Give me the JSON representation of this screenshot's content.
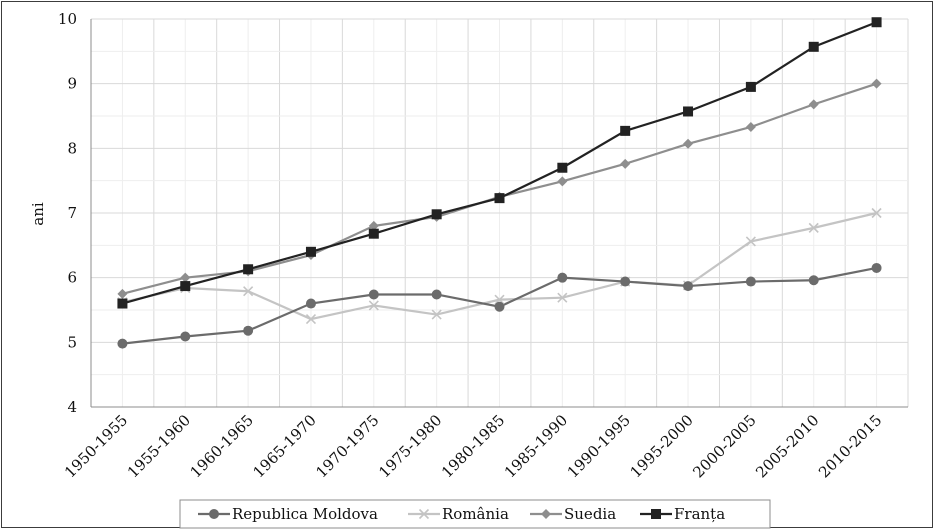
{
  "chart_data": {
    "type": "line",
    "title": "",
    "xlabel": "",
    "ylabel": "ani",
    "ylim": [
      4,
      10
    ],
    "yticks": [
      4,
      5,
      6,
      7,
      8,
      9,
      10
    ],
    "grid": true,
    "legend_position": "bottom",
    "categories": [
      "1950-1955",
      "1955-1960",
      "1960-1965",
      "1965-1970",
      "1970-1975",
      "1975-1980",
      "1980-1985",
      "1985-1990",
      "1990-1995",
      "1995-2000",
      "2000-2005",
      "2005-2010",
      "2010-2015"
    ],
    "series": [
      {
        "name": "Republica Moldova",
        "color": "#6b6b6b",
        "marker": "circle",
        "values": [
          4.98,
          5.09,
          5.18,
          5.6,
          5.74,
          5.74,
          5.55,
          6.0,
          5.94,
          5.87,
          5.94,
          5.96,
          6.15
        ]
      },
      {
        "name": "România",
        "color": "#c4c4c4",
        "marker": "x",
        "values": [
          5.62,
          5.84,
          5.79,
          5.36,
          5.57,
          5.43,
          5.66,
          5.69,
          5.94,
          5.88,
          6.56,
          6.77,
          7.0
        ]
      },
      {
        "name": "Suedia",
        "color": "#8e8e8e",
        "marker": "diamond",
        "values": [
          5.75,
          6.0,
          6.1,
          6.35,
          6.8,
          6.94,
          7.25,
          7.49,
          7.76,
          8.07,
          8.33,
          8.68,
          9.0
        ]
      },
      {
        "name": "Franța",
        "color": "#222222",
        "marker": "square",
        "values": [
          5.6,
          5.87,
          6.13,
          6.4,
          6.68,
          6.98,
          7.23,
          7.7,
          8.27,
          8.57,
          8.95,
          9.57,
          9.95
        ]
      }
    ]
  }
}
